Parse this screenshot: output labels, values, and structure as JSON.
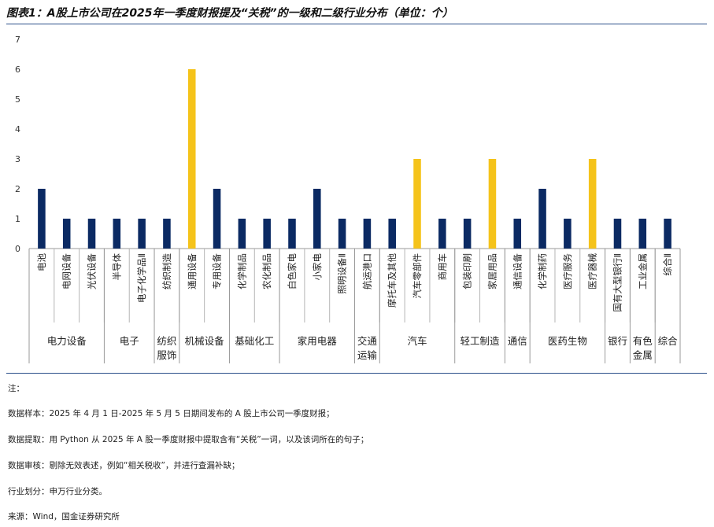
{
  "title": "图表1：A股上市公司在2025年一季度财报提及“关税”的一级和二级行业分布（单位：个）",
  "colors": {
    "primary": "#0b2a63",
    "highlight": "#f5c31a",
    "rule": "#2a4f8a"
  },
  "chart_data": {
    "type": "bar",
    "ylim": [
      0,
      7
    ],
    "yticks": [
      0,
      1,
      2,
      3,
      4,
      5,
      6,
      7
    ],
    "categories": [
      "电池",
      "电网设备",
      "光伏设备",
      "半导体",
      "电子化学品Ⅱ",
      "纺织制造",
      "通用设备",
      "专用设备",
      "化学制品",
      "农化制品",
      "白色家电",
      "小家电",
      "照明设备Ⅱ",
      "航运港口",
      "摩托车及其他",
      "汽车零部件",
      "商用车",
      "包装印刷",
      "家居用品",
      "通信设备",
      "化学制药",
      "医疗服务",
      "医疗器械",
      "国有大型银行Ⅱ",
      "工业金属",
      "综合Ⅱ"
    ],
    "values": [
      2,
      1,
      1,
      1,
      1,
      1,
      6,
      2,
      1,
      1,
      1,
      2,
      1,
      1,
      1,
      3,
      1,
      1,
      3,
      1,
      2,
      1,
      3,
      1,
      1,
      1
    ],
    "highlighted": [
      false,
      false,
      false,
      false,
      false,
      false,
      true,
      false,
      false,
      false,
      false,
      false,
      false,
      false,
      false,
      true,
      false,
      false,
      true,
      false,
      false,
      false,
      true,
      false,
      false,
      false
    ],
    "groups": [
      {
        "label": "电力设备",
        "start": 0,
        "end": 2
      },
      {
        "label": "电子",
        "start": 3,
        "end": 4
      },
      {
        "label": "纺织服饰",
        "start": 5,
        "end": 5
      },
      {
        "label": "机械设备",
        "start": 6,
        "end": 7
      },
      {
        "label": "基础化工",
        "start": 8,
        "end": 9
      },
      {
        "label": "家用电器",
        "start": 10,
        "end": 12
      },
      {
        "label": "交通运输",
        "start": 13,
        "end": 13
      },
      {
        "label": "汽车",
        "start": 14,
        "end": 16
      },
      {
        "label": "轻工制造",
        "start": 17,
        "end": 18
      },
      {
        "label": "通信",
        "start": 19,
        "end": 19
      },
      {
        "label": "医药生物",
        "start": 20,
        "end": 22
      },
      {
        "label": "银行",
        "start": 23,
        "end": 23
      },
      {
        "label": "有色金属",
        "start": 24,
        "end": 24
      },
      {
        "label": "综合",
        "start": 25,
        "end": 25
      }
    ]
  },
  "notes": [
    "注：",
    "数据样本：2025 年 4 月 1 日-2025 年 5 月 5 日期间发布的 A 股上市公司一季度财报；",
    "数据提取：用 Python 从 2025 年 A 股一季度财报中提取含有“关税”一词，以及该词所在的句子；",
    "数据审核：剔除无效表述，例如“相关税收”，并进行查漏补缺；",
    "行业划分：申万行业分类。",
    "来源：Wind，国金证券研究所"
  ]
}
